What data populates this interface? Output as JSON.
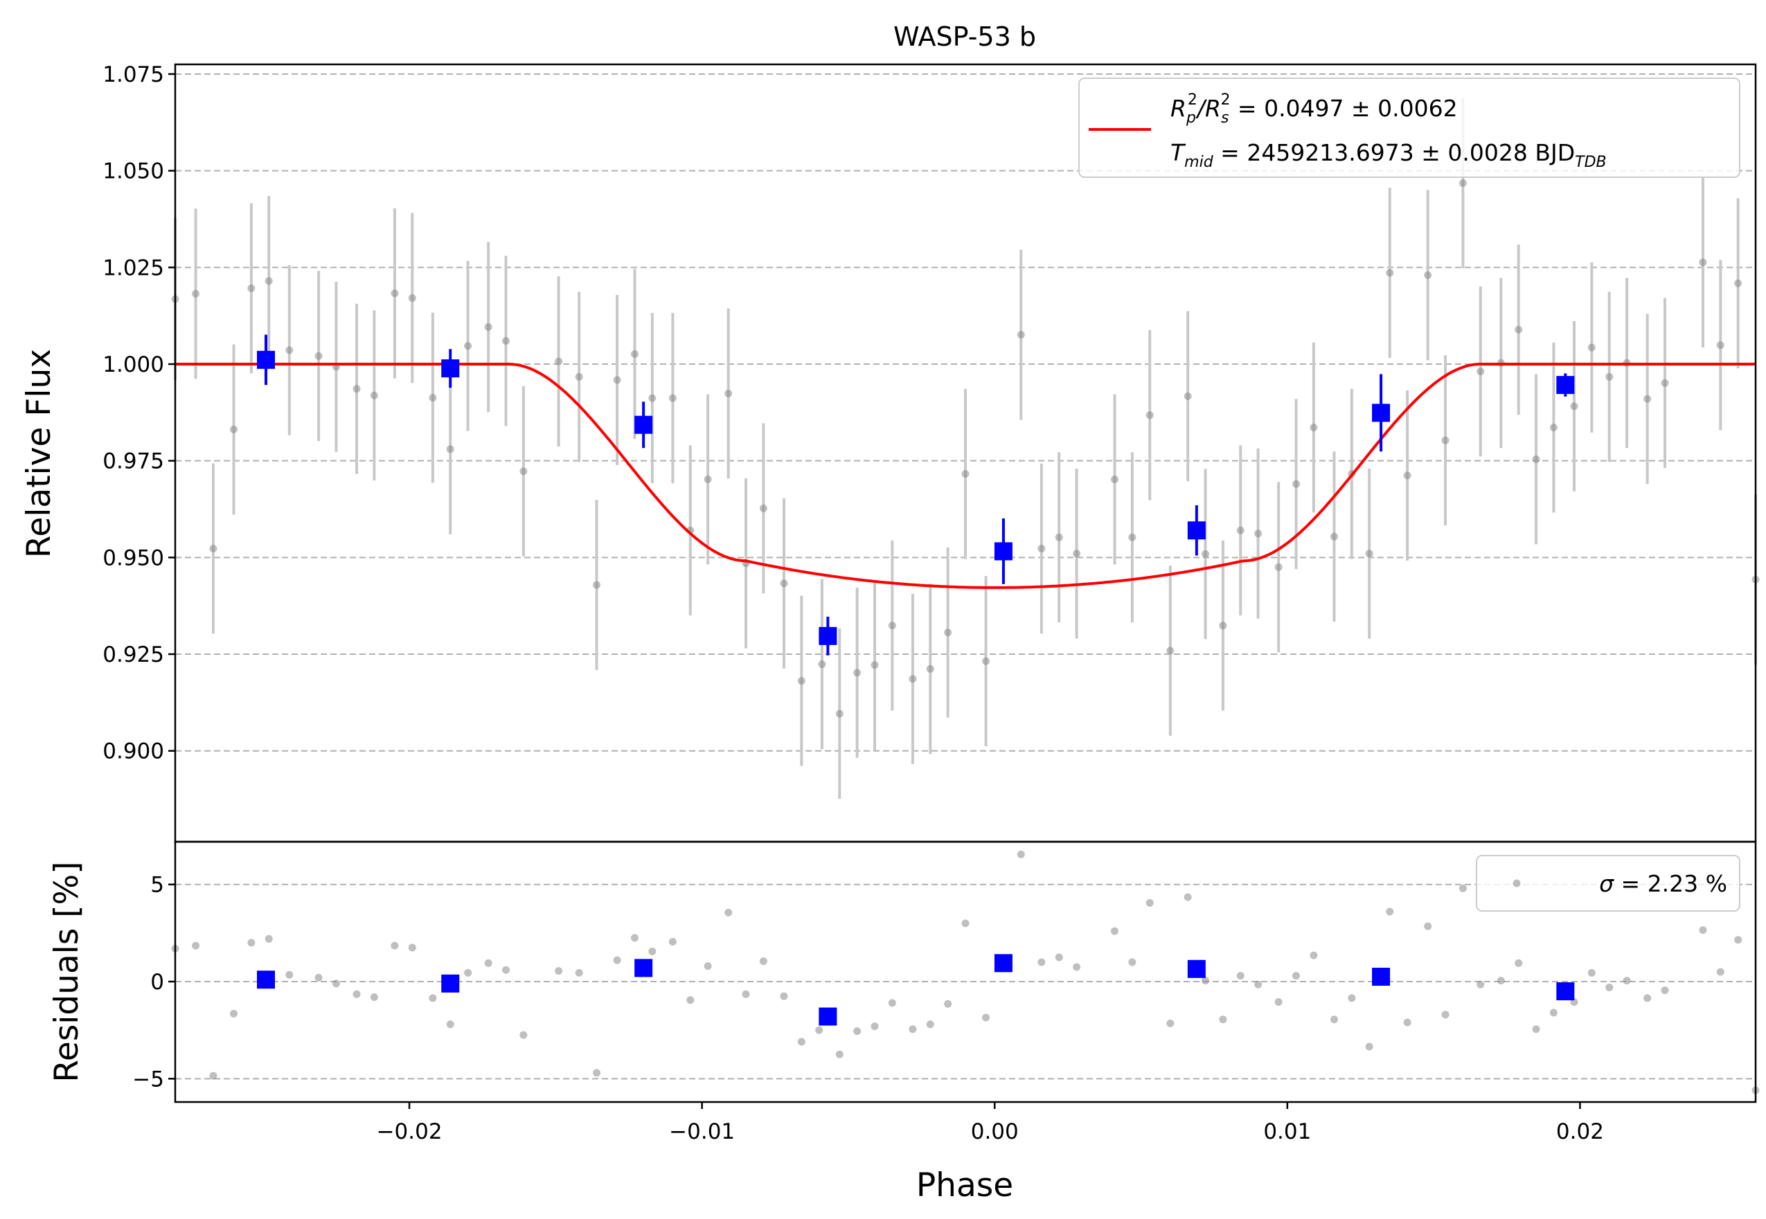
{
  "chart_data": {
    "type": "scatter",
    "title": "WASP-53 b",
    "xlabel": "Phase",
    "xlim": [
      -0.028,
      0.026
    ],
    "xticks": [
      -0.02,
      -0.01,
      0.0,
      0.01,
      0.02
    ],
    "xtick_labels": [
      "−0.02",
      "−0.01",
      "0.00",
      "0.01",
      "0.02"
    ],
    "colors": {
      "raw": "#808080",
      "raw_err": "#c8c8c8",
      "binned": "#0000ff",
      "model": "#ff0000",
      "grid": "#b0b0b0"
    },
    "panels": [
      {
        "name": "flux",
        "ylabel": "Relative Flux",
        "ylim": [
          0.8765,
          1.0775
        ],
        "yticks": [
          0.9,
          0.925,
          0.95,
          0.975,
          1.0,
          1.025,
          1.05,
          1.075
        ],
        "ytick_labels": [
          "0.900",
          "0.925",
          "0.950",
          "0.975",
          "1.000",
          "1.025",
          "1.050",
          "1.075"
        ],
        "grid": true,
        "legend": {
          "placement": "top-right",
          "line1": {
            "main": "R",
            "sub1": "p",
            "sup1": "2",
            "mid": "/R",
            "sub2": "s",
            "sup2": "2",
            "value": " = 0.0497 ± 0.0062"
          },
          "line2": {
            "main": "T",
            "sub1": "mid",
            "value": " = 2459213.6973 ± 0.0028 BJD",
            "sub2": "TDB"
          }
        },
        "raw": [
          [
            -0.028,
            1.0168,
            0.021
          ],
          [
            -0.0273,
            1.0182,
            0.022
          ],
          [
            -0.0267,
            0.9523,
            0.022
          ],
          [
            -0.026,
            0.9831,
            0.022
          ],
          [
            -0.0254,
            1.0196,
            0.022
          ],
          [
            -0.0248,
            1.0215,
            0.022
          ],
          [
            -0.0241,
            1.0036,
            0.022
          ],
          [
            -0.0231,
            1.0021,
            0.022
          ],
          [
            -0.0225,
            0.9993,
            0.022
          ],
          [
            -0.0218,
            0.9936,
            0.022
          ],
          [
            -0.0212,
            0.9919,
            0.022
          ],
          [
            -0.0205,
            1.0183,
            0.022
          ],
          [
            -0.0199,
            1.0171,
            0.022
          ],
          [
            -0.0192,
            0.9913,
            0.022
          ],
          [
            -0.0186,
            0.978,
            0.022
          ],
          [
            -0.018,
            1.0047,
            0.022
          ],
          [
            -0.0173,
            1.0096,
            0.022
          ],
          [
            -0.0167,
            1.006,
            0.022
          ],
          [
            -0.0161,
            0.9723,
            0.022
          ],
          [
            -0.0149,
            1.0007,
            0.022
          ],
          [
            -0.0142,
            0.9967,
            0.022
          ],
          [
            -0.0136,
            0.9429,
            0.022
          ],
          [
            -0.0129,
            0.9959,
            0.022
          ],
          [
            -0.0123,
            1.0026,
            0.022
          ],
          [
            -0.0117,
            0.9912,
            0.022
          ],
          [
            -0.011,
            0.9912,
            0.022
          ],
          [
            -0.0104,
            0.957,
            0.022
          ],
          [
            -0.0098,
            0.9702,
            0.022
          ],
          [
            -0.0091,
            0.9924,
            0.022
          ],
          [
            -0.0085,
            0.9485,
            0.022
          ],
          [
            -0.0079,
            0.9627,
            0.022
          ],
          [
            -0.0072,
            0.9433,
            0.022
          ],
          [
            -0.0066,
            0.9181,
            0.022
          ],
          [
            -0.0059,
            0.9224,
            0.022
          ],
          [
            -0.0053,
            0.9096,
            0.022
          ],
          [
            -0.0047,
            0.9202,
            0.022
          ],
          [
            -0.0041,
            0.9222,
            0.022
          ],
          [
            -0.0035,
            0.9324,
            0.022
          ],
          [
            -0.0028,
            0.9186,
            0.022
          ],
          [
            -0.0022,
            0.9212,
            0.022
          ],
          [
            -0.0016,
            0.9306,
            0.022
          ],
          [
            -0.001,
            0.9716,
            0.022
          ],
          [
            -0.0003,
            0.9232,
            0.022
          ],
          [
            0.0009,
            1.0076,
            0.022
          ],
          [
            0.0016,
            0.9523,
            0.022
          ],
          [
            0.0022,
            0.9552,
            0.022
          ],
          [
            0.0028,
            0.951,
            0.022
          ],
          [
            0.0041,
            0.9702,
            0.022
          ],
          [
            0.0047,
            0.9552,
            0.022
          ],
          [
            0.0053,
            0.9868,
            0.022
          ],
          [
            0.006,
            0.9259,
            0.022
          ],
          [
            0.0066,
            0.9917,
            0.022
          ],
          [
            0.0072,
            0.9509,
            0.022
          ],
          [
            0.0078,
            0.9324,
            0.022
          ],
          [
            0.0084,
            0.957,
            0.022
          ],
          [
            0.009,
            0.9562,
            0.022
          ],
          [
            0.0097,
            0.9475,
            0.022
          ],
          [
            0.0103,
            0.969,
            0.022
          ],
          [
            0.0109,
            0.9836,
            0.022
          ],
          [
            0.0116,
            0.9554,
            0.022
          ],
          [
            0.0122,
            0.9716,
            0.022
          ],
          [
            0.0128,
            0.951,
            0.022
          ],
          [
            0.0135,
            1.0236,
            0.022
          ],
          [
            0.0141,
            0.9712,
            0.022
          ],
          [
            0.0148,
            1.023,
            0.022
          ],
          [
            0.0154,
            0.9803,
            0.022
          ],
          [
            0.016,
            1.0468,
            0.022
          ],
          [
            0.0166,
            0.9981,
            0.022
          ],
          [
            0.0173,
            1.0003,
            0.022
          ],
          [
            0.0179,
            1.0089,
            0.022
          ],
          [
            0.0185,
            0.9754,
            0.022
          ],
          [
            0.0191,
            0.9836,
            0.022
          ],
          [
            0.0198,
            0.9891,
            0.022
          ],
          [
            0.0204,
            1.0043,
            0.022
          ],
          [
            0.021,
            0.9967,
            0.022
          ],
          [
            0.0216,
            1.0003,
            0.022
          ],
          [
            0.0223,
            0.991,
            0.022
          ],
          [
            0.0229,
            0.9951,
            0.022
          ],
          [
            0.0242,
            1.0263,
            0.022
          ],
          [
            0.0248,
            1.0049,
            0.022
          ],
          [
            0.0254,
            1.0209,
            0.022
          ],
          [
            0.026,
            0.9443,
            0.022
          ]
        ],
        "binned": [
          [
            -0.0249,
            1.0011,
            0.0065
          ],
          [
            -0.0186,
            0.9989,
            0.005
          ],
          [
            -0.012,
            0.9843,
            0.006
          ],
          [
            -0.0057,
            0.9297,
            0.005
          ],
          [
            0.0003,
            0.9516,
            0.0085
          ],
          [
            0.0069,
            0.957,
            0.0065
          ],
          [
            0.0132,
            0.9874,
            0.01
          ],
          [
            0.0195,
            0.9946,
            0.003
          ]
        ],
        "model": {
          "baseline": 1.0,
          "depth": 0.0578,
          "t1": 0.0166,
          "t2": 0.0085
        }
      },
      {
        "name": "residuals",
        "ylabel": "Residuals [%]",
        "ylim": [
          -6.2,
          7.2
        ],
        "yticks": [
          -5,
          0,
          5
        ],
        "ytick_labels": [
          "−5",
          "0",
          "5"
        ],
        "grid": true,
        "legend": {
          "placement": "top-right",
          "sigma": "σ",
          "text": " = 2.23 %"
        },
        "raw": [
          [
            -0.028,
            1.7
          ],
          [
            -0.0273,
            1.85
          ],
          [
            -0.0267,
            -4.85
          ],
          [
            -0.026,
            -1.65
          ],
          [
            -0.0254,
            2.0
          ],
          [
            -0.0248,
            2.2
          ],
          [
            -0.0241,
            0.35
          ],
          [
            -0.0231,
            0.2
          ],
          [
            -0.0225,
            -0.1
          ],
          [
            -0.0218,
            -0.65
          ],
          [
            -0.0212,
            -0.8
          ],
          [
            -0.0205,
            1.85
          ],
          [
            -0.0199,
            1.75
          ],
          [
            -0.0192,
            -0.85
          ],
          [
            -0.0186,
            -2.2
          ],
          [
            -0.018,
            0.45
          ],
          [
            -0.0173,
            0.95
          ],
          [
            -0.0167,
            0.6
          ],
          [
            -0.0161,
            -2.75
          ],
          [
            -0.0149,
            0.55
          ],
          [
            -0.0142,
            0.45
          ],
          [
            -0.0136,
            -4.7
          ],
          [
            -0.0129,
            1.1
          ],
          [
            -0.0123,
            2.25
          ],
          [
            -0.0117,
            1.55
          ],
          [
            -0.011,
            2.05
          ],
          [
            -0.0104,
            -0.95
          ],
          [
            -0.0098,
            0.8
          ],
          [
            -0.0091,
            3.55
          ],
          [
            -0.0085,
            -0.65
          ],
          [
            -0.0079,
            1.05
          ],
          [
            -0.0072,
            -0.75
          ],
          [
            -0.0066,
            -3.1
          ],
          [
            -0.006,
            -2.5
          ],
          [
            -0.0053,
            -3.75
          ],
          [
            -0.0047,
            -2.55
          ],
          [
            -0.0041,
            -2.3
          ],
          [
            -0.0035,
            -1.1
          ],
          [
            -0.0028,
            -2.45
          ],
          [
            -0.0022,
            -2.2
          ],
          [
            -0.0016,
            -1.15
          ],
          [
            -0.001,
            3.0
          ],
          [
            -0.0003,
            -1.85
          ],
          [
            0.0009,
            6.55
          ],
          [
            0.0016,
            1.0
          ],
          [
            0.0022,
            1.25
          ],
          [
            0.0028,
            0.75
          ],
          [
            0.0041,
            2.6
          ],
          [
            0.0047,
            1.0
          ],
          [
            0.0053,
            4.05
          ],
          [
            0.006,
            -2.15
          ],
          [
            0.0066,
            4.35
          ],
          [
            0.0072,
            0.05
          ],
          [
            0.0078,
            -1.95
          ],
          [
            0.0084,
            0.3
          ],
          [
            0.009,
            -0.15
          ],
          [
            0.0097,
            -1.05
          ],
          [
            0.0103,
            0.3
          ],
          [
            0.0109,
            1.35
          ],
          [
            0.0116,
            -1.95
          ],
          [
            0.0122,
            -0.85
          ],
          [
            0.0128,
            -3.35
          ],
          [
            0.0135,
            3.6
          ],
          [
            0.0141,
            -2.1
          ],
          [
            0.0148,
            2.85
          ],
          [
            0.0154,
            -1.7
          ],
          [
            0.016,
            4.8
          ],
          [
            0.0166,
            -0.15
          ],
          [
            0.0173,
            0.05
          ],
          [
            0.0179,
            0.95
          ],
          [
            0.0185,
            -2.45
          ],
          [
            0.0191,
            -1.6
          ],
          [
            0.0198,
            -1.05
          ],
          [
            0.0204,
            0.45
          ],
          [
            0.021,
            -0.3
          ],
          [
            0.0216,
            0.05
          ],
          [
            0.0223,
            -0.85
          ],
          [
            0.0229,
            -0.45
          ],
          [
            0.0242,
            2.65
          ],
          [
            0.0248,
            0.5
          ],
          [
            0.0254,
            2.15
          ],
          [
            0.026,
            -5.6
          ]
        ],
        "binned": [
          [
            -0.0249,
            0.1
          ],
          [
            -0.0186,
            -0.1
          ],
          [
            -0.012,
            0.7
          ],
          [
            -0.0057,
            -1.8
          ],
          [
            0.0003,
            0.95
          ],
          [
            0.0069,
            0.65
          ],
          [
            0.0132,
            0.25
          ],
          [
            0.0195,
            -0.5
          ]
        ]
      }
    ]
  }
}
